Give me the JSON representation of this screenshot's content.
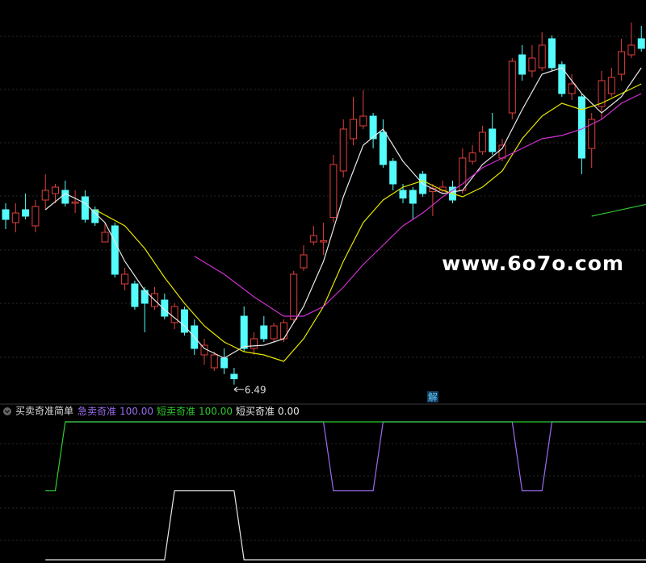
{
  "chart_data": [
    {
      "type": "candlestick",
      "xlim": [
        -0.57,
        64.47
      ],
      "ylim": [
        6.2,
        12.2
      ],
      "up_color": "#e0403c",
      "down_color": "#54fcfc",
      "open": [
        9.2,
        9.0,
        9.2,
        8.95,
        9.35,
        9.45,
        9.5,
        9.3,
        9.4,
        9.2,
        8.7,
        8.95,
        8.05,
        8.05,
        7.95,
        7.7,
        7.8,
        7.45,
        7.65,
        7.4,
        6.95,
        6.75,
        6.9,
        6.65,
        7.55,
        7.05,
        7.4,
        7.2,
        7.2,
        7.5,
        8.3,
        8.7,
        8.7,
        9.08,
        9.8,
        10.3,
        10.5,
        10.65,
        10.4,
        9.95,
        9.5,
        9.5,
        9.75,
        9.48,
        9.5,
        9.55,
        9.5,
        9.95,
        10.1,
        10.45,
        10.0,
        10.7,
        11.6,
        11.35,
        11.4,
        11.85,
        11.45,
        11.0,
        10.95,
        10.15,
        10.8,
        11.0,
        11.3,
        11.6,
        11.85
      ],
      "high": [
        9.3,
        9.3,
        9.45,
        9.35,
        9.75,
        9.6,
        9.65,
        9.5,
        9.5,
        9.25,
        9.0,
        9.0,
        8.3,
        8.1,
        8.0,
        8.0,
        7.9,
        7.75,
        7.7,
        7.5,
        7.2,
        7.0,
        7.05,
        6.75,
        7.7,
        7.3,
        7.55,
        7.45,
        7.5,
        8.25,
        8.65,
        8.95,
        9.0,
        10.05,
        10.6,
        10.95,
        11.05,
        10.7,
        10.6,
        10.0,
        9.6,
        9.55,
        9.8,
        9.6,
        9.65,
        9.65,
        10.15,
        10.2,
        10.5,
        10.7,
        10.3,
        11.55,
        11.75,
        11.75,
        11.95,
        11.9,
        11.5,
        11.3,
        11.0,
        10.7,
        11.35,
        11.4,
        11.85,
        12.1,
        12.05
      ],
      "low": [
        8.9,
        8.85,
        9.05,
        8.85,
        9.2,
        9.3,
        9.25,
        9.15,
        9.0,
        8.95,
        8.7,
        8.15,
        7.95,
        7.65,
        7.3,
        7.65,
        7.5,
        7.35,
        7.25,
        6.95,
        6.8,
        6.7,
        6.65,
        6.49,
        7.0,
        6.95,
        7.15,
        7.15,
        7.15,
        7.45,
        8.25,
        8.65,
        8.5,
        9.0,
        9.7,
        10.2,
        10.45,
        10.15,
        9.85,
        9.5,
        9.3,
        9.05,
        9.4,
        9.1,
        9.45,
        9.3,
        9.45,
        9.9,
        10.05,
        10.05,
        9.95,
        10.6,
        11.2,
        11.25,
        11.35,
        11.35,
        10.95,
        10.9,
        9.75,
        9.85,
        10.6,
        10.95,
        11.2,
        11.55,
        11.65
      ],
      "close": [
        9.05,
        9.15,
        9.1,
        9.25,
        9.5,
        9.55,
        9.3,
        9.32,
        9.05,
        9.0,
        8.85,
        8.2,
        8.2,
        7.7,
        7.75,
        7.9,
        7.55,
        7.7,
        7.3,
        7.05,
        7.1,
        6.95,
        6.75,
        6.58,
        7.05,
        7.2,
        7.2,
        7.4,
        7.45,
        8.2,
        8.5,
        8.8,
        8.72,
        9.9,
        10.45,
        10.6,
        10.65,
        10.3,
        9.9,
        9.6,
        9.38,
        9.3,
        9.45,
        9.53,
        9.55,
        9.35,
        10.0,
        10.08,
        10.4,
        10.1,
        10.2,
        11.5,
        11.3,
        11.55,
        11.75,
        11.4,
        11.0,
        11.15,
        10.0,
        10.6,
        11.2,
        11.25,
        11.65,
        11.75,
        11.7
      ],
      "lines": [
        {
          "color": "#e8e8e8",
          "x": [
            4,
            6,
            8,
            10,
            12,
            14,
            16,
            18,
            20,
            22,
            24,
            26,
            28,
            30,
            32,
            34,
            36,
            38,
            40,
            42,
            44,
            46,
            48,
            50,
            52,
            54,
            56,
            58,
            60,
            62,
            64
          ],
          "values": [
            9.2,
            9.45,
            9.3,
            9.0,
            8.4,
            7.95,
            7.65,
            7.4,
            7.05,
            6.9,
            7.08,
            7.1,
            7.2,
            7.7,
            8.4,
            9.4,
            10.2,
            10.45,
            9.95,
            9.6,
            9.45,
            9.5,
            9.9,
            10.15,
            10.75,
            11.3,
            11.4,
            11.0,
            10.7,
            10.95,
            11.4
          ]
        },
        {
          "color": "#e6e600",
          "x": [
            9,
            12,
            14,
            16,
            18,
            20,
            22,
            24,
            26,
            28,
            30,
            32,
            34,
            36,
            38,
            40,
            42,
            44,
            46,
            48,
            50,
            52,
            54,
            56,
            58,
            60,
            62,
            64
          ],
          "values": [
            9.2,
            8.95,
            8.6,
            8.15,
            7.75,
            7.4,
            7.15,
            7.0,
            6.95,
            6.85,
            7.2,
            7.7,
            8.4,
            9.0,
            9.35,
            9.55,
            9.65,
            9.5,
            9.4,
            9.55,
            9.8,
            10.3,
            10.65,
            10.85,
            10.75,
            10.85,
            11.0,
            11.15
          ]
        },
        {
          "color": "#d030d0",
          "x": [
            19,
            22,
            25,
            28,
            30,
            32,
            34,
            36,
            38,
            40,
            42,
            44,
            46,
            48,
            50,
            52,
            54,
            56,
            58,
            60,
            62,
            64
          ],
          "values": [
            8.48,
            8.2,
            7.85,
            7.55,
            7.55,
            7.7,
            8.0,
            8.35,
            8.65,
            8.95,
            9.15,
            9.4,
            9.6,
            9.85,
            10.0,
            10.15,
            10.3,
            10.35,
            10.45,
            10.6,
            10.85,
            11.0
          ]
        },
        {
          "color": "#30c030",
          "x": [
            59,
            65
          ],
          "values": [
            9.1,
            9.3
          ]
        }
      ],
      "min_label": {
        "index": 23,
        "value": 6.49
      },
      "marker": {
        "index": 43,
        "text": "解"
      },
      "watermark": "www.6o7o.com"
    },
    {
      "type": "line",
      "title": "买卖奇准简单",
      "xlim": [
        -0.57,
        64.47
      ],
      "ylim": [
        0,
        100
      ],
      "series": [
        {
          "name": "急卖奇准",
          "color": "#9a6cf0",
          "value_label": "100.00",
          "x": [
            6,
            32,
            33,
            37,
            38,
            51,
            52,
            54,
            55,
            65
          ],
          "values": [
            100,
            100,
            50,
            50,
            100,
            100,
            50,
            50,
            100,
            100
          ]
        },
        {
          "name": "短卖奇准",
          "color": "#2ccc2c",
          "value_label": "100.00",
          "x": [
            4,
            5,
            6,
            65
          ],
          "values": [
            50,
            50,
            100,
            100
          ]
        },
        {
          "name": "短买奇准",
          "color": "#e8e8e8",
          "value_label": "0.00",
          "x": [
            4,
            16,
            17,
            23,
            24,
            65
          ],
          "values": [
            0,
            0,
            50,
            50,
            0,
            0
          ]
        }
      ]
    }
  ]
}
